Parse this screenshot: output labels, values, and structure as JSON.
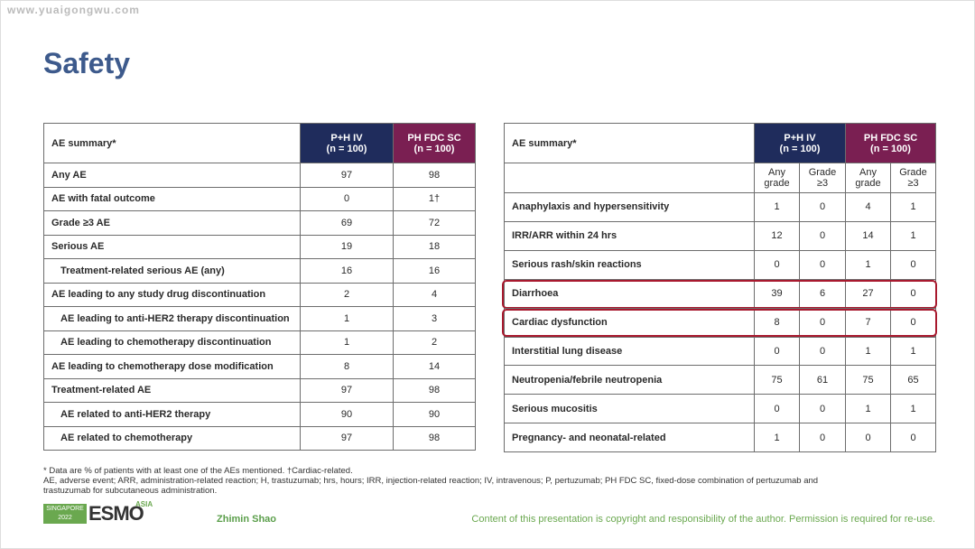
{
  "watermark": "www.yuaigongwu.com",
  "title": "Safety",
  "left_table": {
    "header": {
      "label": "AE summary*",
      "columns": [
        {
          "lines": [
            "P+H IV",
            "(n = 100)"
          ]
        },
        {
          "lines": [
            "PH FDC SC",
            "(n = 100)"
          ]
        }
      ]
    },
    "rows": [
      {
        "label": "Any AE",
        "indent": false,
        "values": [
          "97",
          "98"
        ]
      },
      {
        "label": "AE with fatal outcome",
        "indent": false,
        "values": [
          "0",
          "1†"
        ]
      },
      {
        "label": "Grade ≥3 AE",
        "indent": false,
        "values": [
          "69",
          "72"
        ]
      },
      {
        "label": "Serious AE",
        "indent": false,
        "values": [
          "19",
          "18"
        ]
      },
      {
        "label": "Treatment-related serious AE (any)",
        "indent": true,
        "values": [
          "16",
          "16"
        ]
      },
      {
        "label": "AE leading to any study drug discontinuation",
        "indent": false,
        "values": [
          "2",
          "4"
        ]
      },
      {
        "label": "AE leading to anti-HER2 therapy discontinuation",
        "indent": true,
        "values": [
          "1",
          "3"
        ]
      },
      {
        "label": "AE leading to chemotherapy discontinuation",
        "indent": true,
        "values": [
          "1",
          "2"
        ]
      },
      {
        "label": "AE leading to chemotherapy dose modification",
        "indent": false,
        "values": [
          "8",
          "14"
        ]
      },
      {
        "label": "Treatment-related AE",
        "indent": false,
        "values": [
          "97",
          "98"
        ]
      },
      {
        "label": "AE related to anti-HER2 therapy",
        "indent": true,
        "values": [
          "90",
          "90"
        ]
      },
      {
        "label": "AE related to chemotherapy",
        "indent": true,
        "values": [
          "97",
          "98"
        ]
      }
    ]
  },
  "right_table": {
    "header": {
      "label": "AE summary*",
      "groups": [
        {
          "lines": [
            "P+H IV",
            "(n = 100)"
          ],
          "subcolumns": [
            [
              "Any",
              "grade"
            ],
            [
              "Grade",
              "≥3"
            ]
          ]
        },
        {
          "lines": [
            "PH FDC SC",
            "(n = 100)"
          ],
          "subcolumns": [
            [
              "Any",
              "grade"
            ],
            [
              "Grade",
              "≥3"
            ]
          ]
        }
      ]
    },
    "rows": [
      {
        "label": "Anaphylaxis and hypersensitivity",
        "highlighted": false,
        "values": [
          "1",
          "0",
          "4",
          "1"
        ]
      },
      {
        "label": "IRR/ARR within 24 hrs",
        "highlighted": false,
        "values": [
          "12",
          "0",
          "14",
          "1"
        ]
      },
      {
        "label": "Serious rash/skin reactions",
        "highlighted": false,
        "values": [
          "0",
          "0",
          "1",
          "0"
        ]
      },
      {
        "label": "Diarrhoea",
        "highlighted": true,
        "values": [
          "39",
          "6",
          "27",
          "0"
        ]
      },
      {
        "label": "Cardiac dysfunction",
        "highlighted": true,
        "values": [
          "8",
          "0",
          "7",
          "0"
        ]
      },
      {
        "label": "Interstitial lung disease",
        "highlighted": false,
        "values": [
          "0",
          "0",
          "1",
          "1"
        ]
      },
      {
        "label": "Neutropenia/febrile neutropenia",
        "highlighted": false,
        "values": [
          "75",
          "61",
          "75",
          "65"
        ]
      },
      {
        "label": "Serious mucositis",
        "highlighted": false,
        "values": [
          "0",
          "0",
          "1",
          "1"
        ]
      },
      {
        "label": "Pregnancy- and neonatal-related",
        "highlighted": false,
        "values": [
          "1",
          "0",
          "0",
          "0"
        ]
      }
    ]
  },
  "footnotes": [
    "* Data are % of patients with at least one of the AEs mentioned. †Cardiac-related.",
    "AE, adverse event; ARR, administration-related reaction; H, trastuzumab; hrs, hours; IRR, injection-related reaction; IV, intravenous; P, pertuzumab; PH FDC SC, fixed-dose combination of pertuzumab and",
    "trastuzumab for subcutaneous administration."
  ],
  "footer": {
    "logo": {
      "place": "SINGAPORE",
      "year": "2022",
      "name": "ESMO",
      "region": "ASIA"
    },
    "author": "Zhimin Shao",
    "copyright": "Content of this presentation is copyright and responsibility of the author. Permission is required for re-use."
  }
}
